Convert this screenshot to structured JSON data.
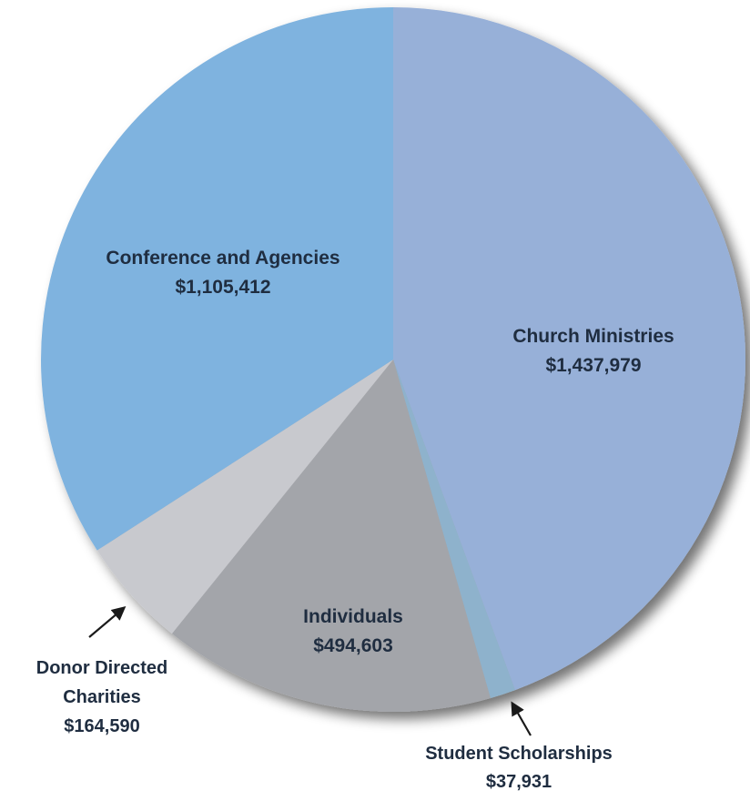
{
  "chart_data": {
    "type": "pie",
    "title": "",
    "legend": "none",
    "start_angle_deg": 0,
    "direction": "clockwise",
    "slices": [
      {
        "label": "Church Ministries",
        "value": 1437979,
        "value_text": "$1,437,979",
        "color": "#97b0d8"
      },
      {
        "label": "Student Scholarships",
        "value": 37931,
        "value_text": "$37,931",
        "color": "#8eb2cc"
      },
      {
        "label": "Individuals",
        "value": 494603,
        "value_text": "$494,603",
        "color": "#a3a5aa"
      },
      {
        "label": "Donor Directed Charities",
        "value": 164590,
        "value_text": "$164,590",
        "color": "#c8c9ce"
      },
      {
        "label": "Conference and Agencies",
        "value": 1105412,
        "value_text": "$1,105,412",
        "color": "#7fb3df"
      }
    ]
  }
}
